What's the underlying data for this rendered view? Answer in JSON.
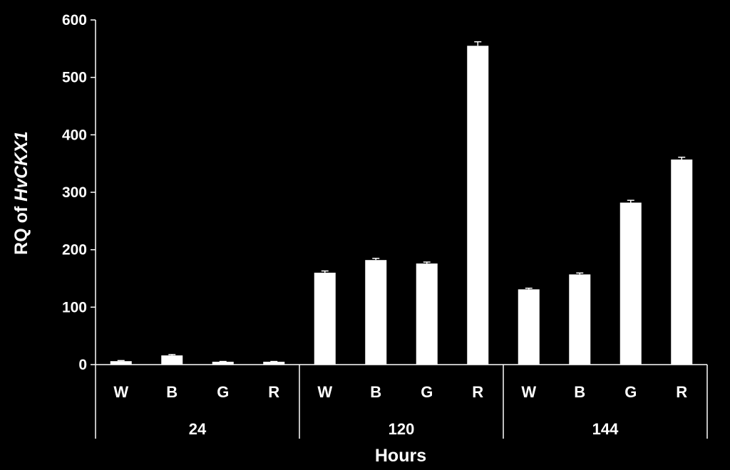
{
  "chart_data": {
    "type": "bar",
    "xlabel": "Hours",
    "ylabel_prefix": "RQ of ",
    "ylabel_italic": "HvCKX1",
    "ylim": [
      0,
      600
    ],
    "yticks": [
      "0",
      "100",
      "200",
      "300",
      "400",
      "500",
      "600"
    ],
    "grid": false,
    "groups": [
      {
        "label": "24",
        "categories": [
          "W",
          "B",
          "G",
          "R"
        ],
        "values": [
          6,
          16,
          5,
          5
        ],
        "errors": [
          1,
          1.5,
          0.5,
          0.5
        ]
      },
      {
        "label": "120",
        "categories": [
          "W",
          "B",
          "G",
          "R"
        ],
        "values": [
          160,
          182,
          176,
          555
        ],
        "errors": [
          3,
          3,
          2.5,
          7
        ]
      },
      {
        "label": "144",
        "categories": [
          "W",
          "B",
          "G",
          "R"
        ],
        "values": [
          131,
          157,
          282,
          357
        ],
        "errors": [
          2,
          2.5,
          4,
          4
        ]
      }
    ],
    "colors": {
      "background": "#000000",
      "bar": "#ffffff",
      "axis": "#ffffff"
    }
  }
}
